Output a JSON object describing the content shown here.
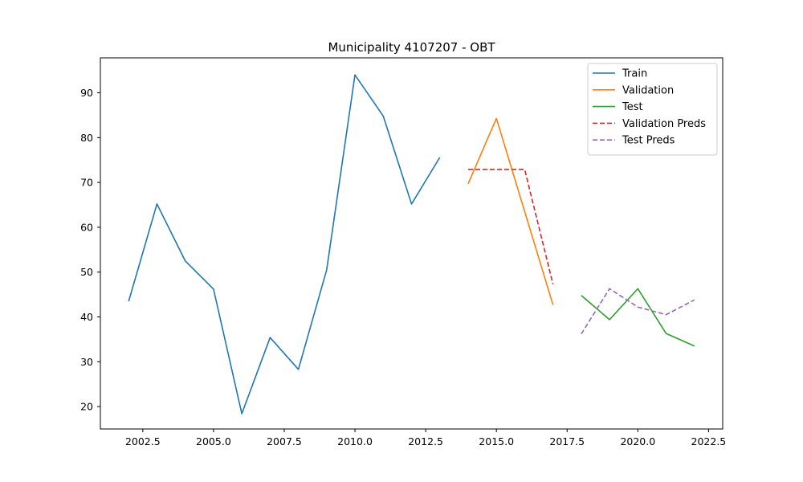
{
  "chart_data": {
    "type": "line",
    "title": "Municipality 4107207 - OBT",
    "xlabel": "",
    "ylabel": "",
    "xlim": [
      2001.0,
      2023.0
    ],
    "ylim": [
      15.0,
      97.8
    ],
    "xticks": [
      2002.5,
      2005.0,
      2007.5,
      2010.0,
      2012.5,
      2015.0,
      2017.5,
      2020.0,
      2022.5
    ],
    "xtick_labels": [
      "2002.5",
      "2005.0",
      "2007.5",
      "2010.0",
      "2012.5",
      "2015.0",
      "2017.5",
      "2020.0",
      "2022.5"
    ],
    "yticks": [
      20,
      30,
      40,
      50,
      60,
      70,
      80,
      90
    ],
    "ytick_labels": [
      "20",
      "30",
      "40",
      "50",
      "60",
      "70",
      "80",
      "90"
    ],
    "grid": false,
    "legend_position": "top-right",
    "series": [
      {
        "name": "Train",
        "color": "#1f77b4",
        "style": "solid",
        "x": [
          2002,
          2003,
          2004,
          2005,
          2006,
          2007,
          2008,
          2009,
          2010,
          2011,
          2012,
          2013
        ],
        "values": [
          43.5,
          65.2,
          52.5,
          46.2,
          18.4,
          35.4,
          28.3,
          50.5,
          94.0,
          84.8,
          65.2,
          75.6
        ]
      },
      {
        "name": "Validation",
        "color": "#ff7f0e",
        "style": "solid",
        "x": [
          2014,
          2015,
          2016,
          2017
        ],
        "values": [
          69.7,
          84.3,
          63.5,
          42.7
        ]
      },
      {
        "name": "Test",
        "color": "#2ca02c",
        "style": "solid",
        "x": [
          2018,
          2019,
          2020,
          2021,
          2022
        ],
        "values": [
          44.8,
          39.4,
          46.3,
          36.3,
          33.5
        ]
      },
      {
        "name": "Validation Preds",
        "color": "#d62728",
        "style": "dashed",
        "x": [
          2014,
          2015,
          2016,
          2017
        ],
        "values": [
          72.9,
          72.9,
          72.9,
          47.3
        ]
      },
      {
        "name": "Test Preds",
        "color": "#9467bd",
        "style": "dashed",
        "x": [
          2018,
          2019,
          2020,
          2021,
          2022
        ],
        "values": [
          36.2,
          46.3,
          42.2,
          40.5,
          43.8
        ]
      }
    ]
  }
}
